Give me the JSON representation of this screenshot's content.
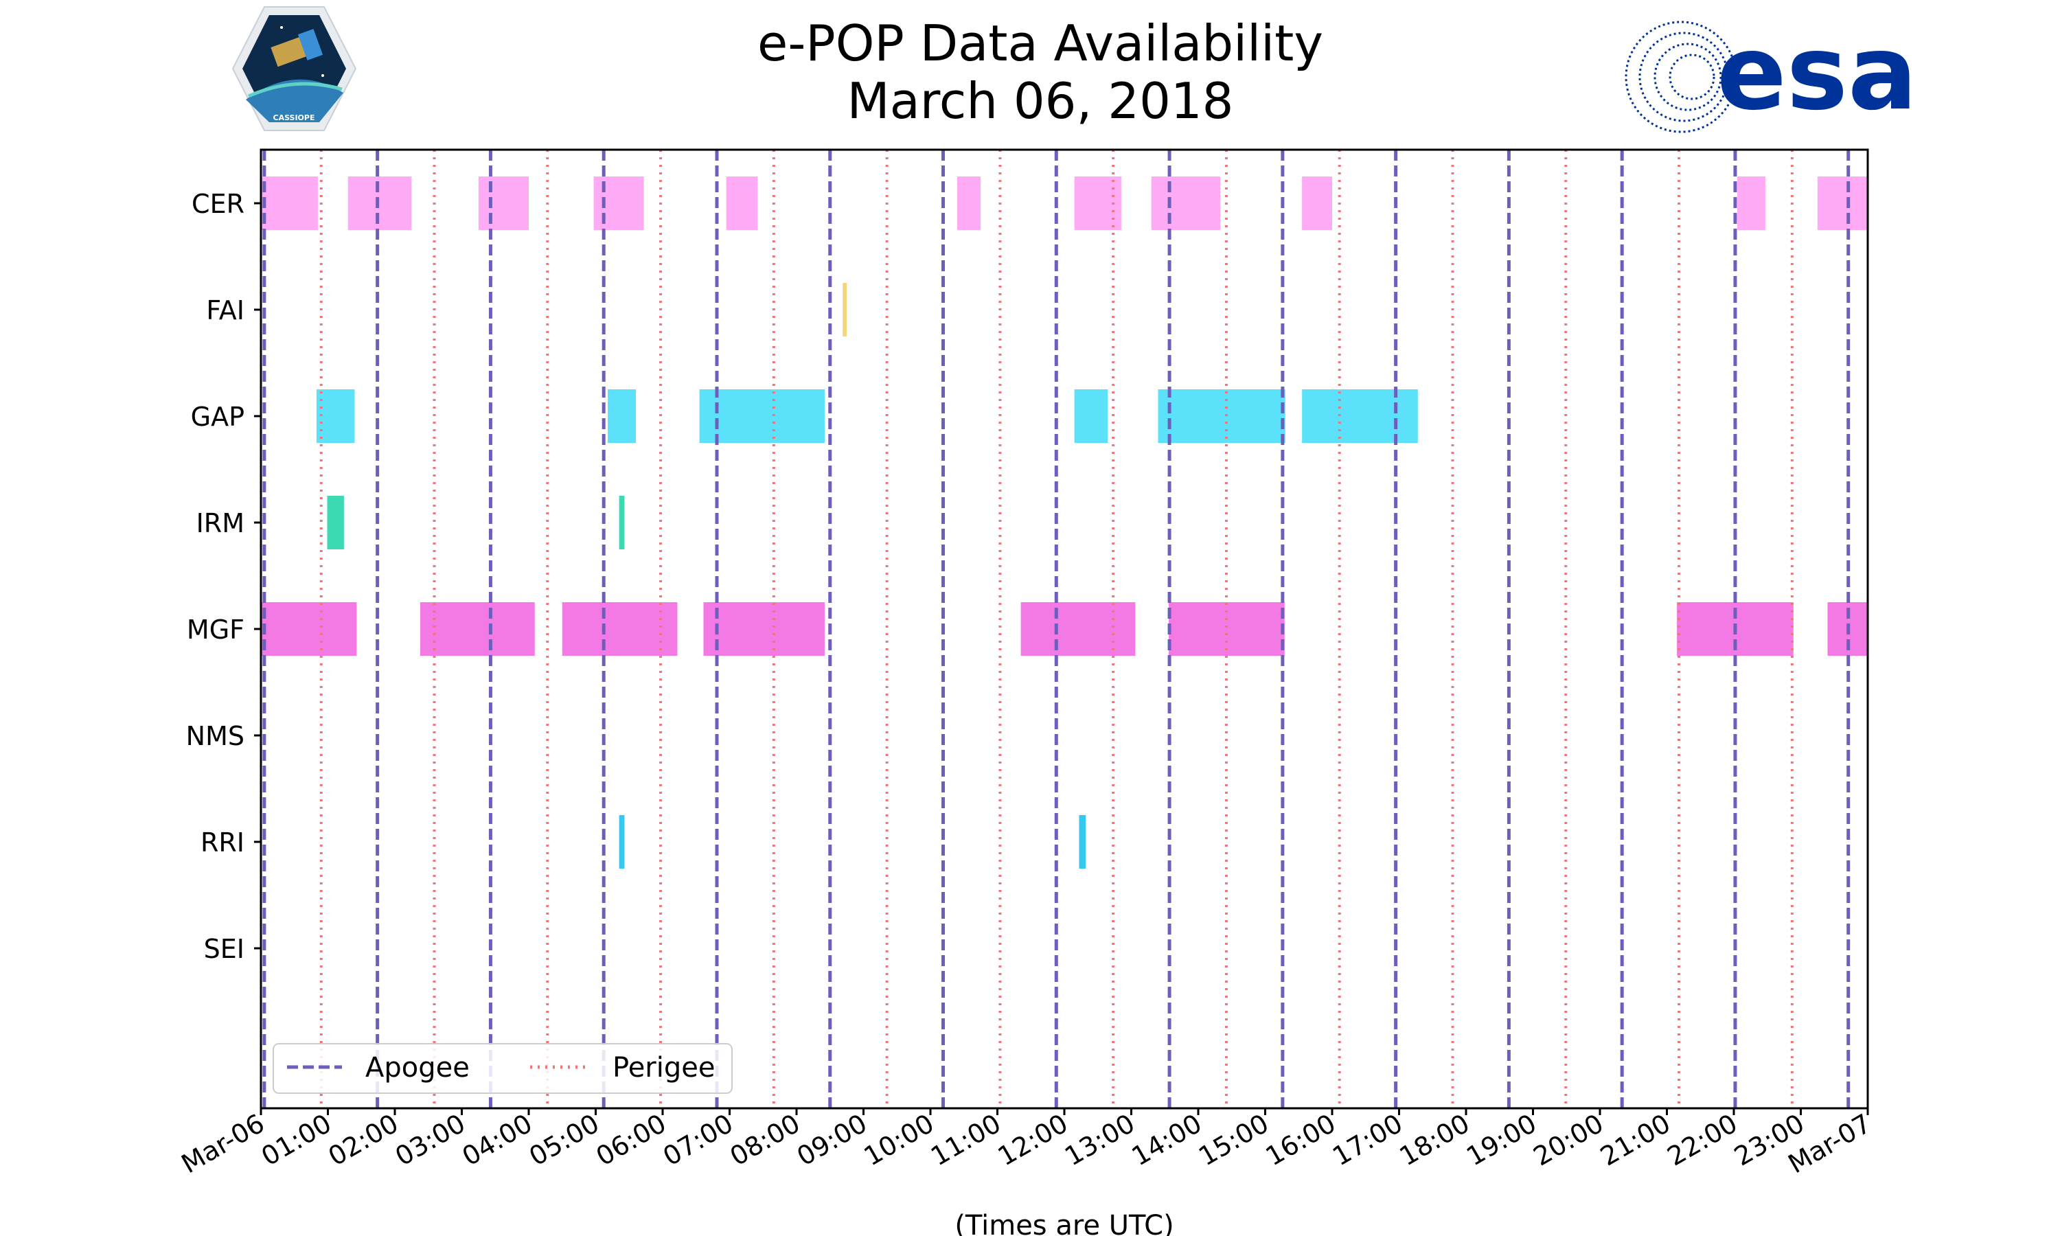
{
  "header": {
    "title": "e-POP Data Availability",
    "subtitle": "March 06, 2018",
    "mission_logo_text": "CASSIOPE",
    "agency_logo_text": "esa"
  },
  "chart_data": {
    "type": "timeline",
    "title": "e-POP Data Availability",
    "subtitle": "March 06, 2018",
    "xlabel": "(Times are UTC)",
    "ylabel": "",
    "x_range_hours": [
      0,
      24
    ],
    "x_tick_labels": [
      "Mar-06",
      "01:00",
      "02:00",
      "03:00",
      "04:00",
      "05:00",
      "06:00",
      "07:00",
      "08:00",
      "09:00",
      "10:00",
      "11:00",
      "12:00",
      "13:00",
      "14:00",
      "15:00",
      "16:00",
      "17:00",
      "18:00",
      "19:00",
      "20:00",
      "21:00",
      "22:00",
      "23:00",
      "Mar-07"
    ],
    "instruments": [
      {
        "name": "CER",
        "color": "#ffaaf5",
        "intervals": [
          [
            0.0,
            0.85
          ],
          [
            1.3,
            2.25
          ],
          [
            3.25,
            4.0
          ],
          [
            4.97,
            5.72
          ],
          [
            6.95,
            7.42
          ],
          [
            10.4,
            10.75
          ],
          [
            12.15,
            12.85
          ],
          [
            13.3,
            14.33
          ],
          [
            15.55,
            16.0
          ],
          [
            22.05,
            22.47
          ],
          [
            23.25,
            24.0
          ]
        ]
      },
      {
        "name": "FAI",
        "color": "#f5d47a",
        "intervals": [
          [
            8.69,
            8.75
          ]
        ]
      },
      {
        "name": "GAP",
        "color": "#5ce1fa",
        "intervals": [
          [
            0.83,
            1.4
          ],
          [
            5.18,
            5.6
          ],
          [
            6.55,
            8.42
          ],
          [
            12.15,
            12.65
          ],
          [
            13.4,
            15.3
          ],
          [
            15.55,
            17.28
          ]
        ]
      },
      {
        "name": "IRM",
        "color": "#3dd9b3",
        "intervals": [
          [
            0.99,
            1.24
          ],
          [
            5.35,
            5.43
          ]
        ]
      },
      {
        "name": "MGF",
        "color": "#f37ae5",
        "intervals": [
          [
            0.0,
            1.43
          ],
          [
            2.38,
            4.09
          ],
          [
            4.5,
            6.22
          ],
          [
            6.61,
            8.42
          ],
          [
            11.35,
            13.06
          ],
          [
            13.56,
            15.29
          ],
          [
            21.15,
            22.89
          ],
          [
            23.4,
            24.0
          ]
        ]
      },
      {
        "name": "NMS",
        "color": "#cccccc",
        "intervals": []
      },
      {
        "name": "RRI",
        "color": "#37c8ef",
        "intervals": [
          [
            5.35,
            5.43
          ],
          [
            12.22,
            12.32
          ]
        ]
      },
      {
        "name": "SEI",
        "color": "#cccccc",
        "intervals": []
      }
    ],
    "apogee_hours": [
      0.05,
      1.74,
      3.43,
      5.12,
      6.81,
      8.5,
      10.19,
      11.88,
      13.57,
      15.26,
      16.95,
      18.64,
      20.33,
      22.02,
      23.71
    ],
    "perigee_hours": [
      0.9,
      2.59,
      4.28,
      5.97,
      7.66,
      9.35,
      11.04,
      12.73,
      14.42,
      16.11,
      17.8,
      19.49,
      21.18,
      22.87
    ],
    "apogee_color": "#6e5ebc",
    "perigee_color": "#f07478",
    "legend": {
      "entries": [
        "Apogee",
        "Perigee"
      ],
      "placement": "lower-left"
    },
    "grid": false
  }
}
